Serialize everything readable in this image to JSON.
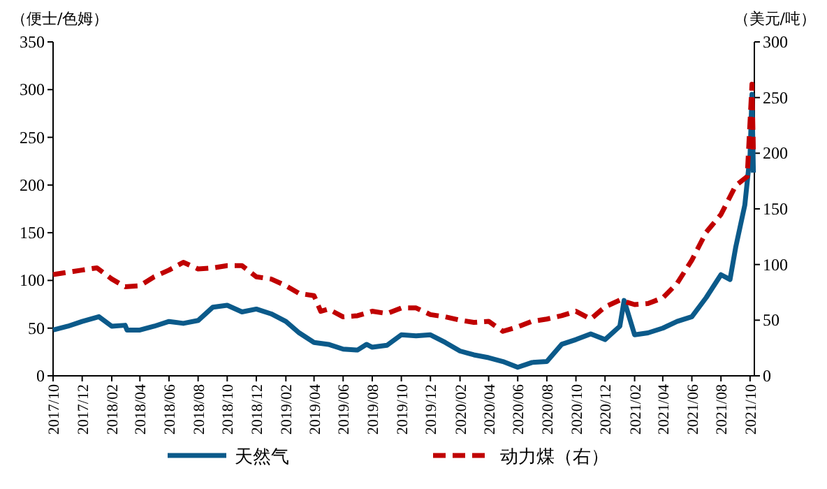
{
  "chart_data": {
    "type": "line",
    "ylabel": "（便士/色姆）",
    "y2label": "（美元/吨）",
    "legend": "bottom",
    "grid": false,
    "xlim": [
      "2017-10-01",
      "2021-10-10"
    ],
    "xticks": [
      {
        "value": "2017-10",
        "label": "2017/10"
      },
      {
        "value": "2017-12",
        "label": "2017/12"
      },
      {
        "value": "2018-02",
        "label": "2018/02"
      },
      {
        "value": "2018-04",
        "label": "2018/04"
      },
      {
        "value": "2018-06",
        "label": "2018/06"
      },
      {
        "value": "2018-08",
        "label": "2018/08"
      },
      {
        "value": "2018-10",
        "label": "2018/10"
      },
      {
        "value": "2018-12",
        "label": "2018/12"
      },
      {
        "value": "2019-02",
        "label": "2019/02"
      },
      {
        "value": "2019-04",
        "label": "2019/04"
      },
      {
        "value": "2019-06",
        "label": "2019/06"
      },
      {
        "value": "2019-08",
        "label": "2019/08"
      },
      {
        "value": "2019-10",
        "label": "2019/10"
      },
      {
        "value": "2019-12",
        "label": "2019/12"
      },
      {
        "value": "2020-02",
        "label": "2020/02"
      },
      {
        "value": "2020-04",
        "label": "2020/04"
      },
      {
        "value": "2020-06",
        "label": "2020/06"
      },
      {
        "value": "2020-08",
        "label": "2020/08"
      },
      {
        "value": "2020-10",
        "label": "2020/10"
      },
      {
        "value": "2020-12",
        "label": "2020/12"
      },
      {
        "value": "2021-02",
        "label": "2021/02"
      },
      {
        "value": "2021-04",
        "label": "2021/04"
      },
      {
        "value": "2021-06",
        "label": "2021/06"
      },
      {
        "value": "2021-08",
        "label": "2021/08"
      },
      {
        "value": "2021-10",
        "label": "2021/10"
      }
    ],
    "ylim": [
      0,
      350
    ],
    "yticks": [
      0,
      50,
      100,
      150,
      200,
      250,
      300,
      350
    ],
    "y2lim": [
      0,
      300
    ],
    "y2ticks": [
      0,
      50,
      100,
      150,
      200,
      250,
      300
    ],
    "series": [
      {
        "name": "天然气",
        "color": "#0b5a8a",
        "line_style": "solid",
        "x": [
          "2017-10-01",
          "2017-11-01",
          "2017-12-01",
          "2018-01-05",
          "2018-02-01",
          "2018-03-01",
          "2018-03-05",
          "2018-04-01",
          "2018-05-01",
          "2018-06-01",
          "2018-07-01",
          "2018-08-01",
          "2018-09-01",
          "2018-10-01",
          "2018-11-01",
          "2018-12-01",
          "2019-01-01",
          "2019-02-01",
          "2019-03-01",
          "2019-04-01",
          "2019-05-01",
          "2019-06-01",
          "2019-07-01",
          "2019-07-20",
          "2019-08-01",
          "2019-09-01",
          "2019-10-01",
          "2019-11-01",
          "2019-12-01",
          "2020-01-01",
          "2020-02-01",
          "2020-03-01",
          "2020-04-01",
          "2020-05-01",
          "2020-06-01",
          "2020-07-01",
          "2020-08-01",
          "2020-09-01",
          "2020-10-01",
          "2020-11-01",
          "2020-12-01",
          "2021-01-01",
          "2021-01-10",
          "2021-02-01",
          "2021-03-01",
          "2021-04-01",
          "2021-05-01",
          "2021-06-01",
          "2021-07-01",
          "2021-08-01",
          "2021-08-20",
          "2021-09-01",
          "2021-09-20",
          "2021-10-01",
          "2021-10-05",
          "2021-10-08"
        ],
        "values": [
          48,
          52,
          57,
          62,
          52,
          53,
          48,
          48,
          52,
          57,
          55,
          58,
          72,
          74,
          67,
          70,
          65,
          57,
          45,
          35,
          33,
          28,
          27,
          33,
          30,
          32,
          43,
          42,
          43,
          35,
          26,
          22,
          19,
          15,
          9,
          14,
          15,
          33,
          38,
          44,
          38,
          52,
          79,
          43,
          45,
          50,
          57,
          62,
          82,
          106,
          101,
          135,
          179,
          232,
          295,
          213
        ]
      },
      {
        "name": "动力煤（右）",
        "color": "#c00000",
        "line_style": "dashed",
        "axis": "y2",
        "x": [
          "2017-10-01",
          "2017-12-01",
          "2018-01-01",
          "2018-02-01",
          "2018-03-01",
          "2018-04-01",
          "2018-05-01",
          "2018-06-01",
          "2018-07-01",
          "2018-08-01",
          "2018-09-01",
          "2018-10-01",
          "2018-11-01",
          "2018-12-01",
          "2019-01-01",
          "2019-02-01",
          "2019-03-01",
          "2019-04-01",
          "2019-04-15",
          "2019-05-01",
          "2019-06-01",
          "2019-07-01",
          "2019-08-01",
          "2019-09-01",
          "2019-10-01",
          "2019-11-01",
          "2019-12-01",
          "2020-01-01",
          "2020-02-01",
          "2020-03-01",
          "2020-04-01",
          "2020-05-01",
          "2020-06-01",
          "2020-07-01",
          "2020-08-01",
          "2020-09-01",
          "2020-10-01",
          "2020-11-01",
          "2020-12-01",
          "2021-01-01",
          "2021-02-01",
          "2021-03-01",
          "2021-04-01",
          "2021-05-01",
          "2021-06-01",
          "2021-07-01",
          "2021-08-01",
          "2021-09-01",
          "2021-09-25",
          "2021-10-05",
          "2021-10-08"
        ],
        "values": [
          91,
          95,
          97,
          87,
          80,
          81,
          89,
          95,
          102,
          96,
          97,
          99,
          99,
          89,
          87,
          81,
          74,
          72,
          58,
          60,
          53,
          54,
          58,
          56,
          61,
          61,
          55,
          53,
          50,
          48,
          49,
          40,
          44,
          49,
          51,
          54,
          58,
          51,
          62,
          68,
          64,
          65,
          70,
          83,
          104,
          129,
          145,
          171,
          179,
          262,
          200
        ]
      }
    ]
  }
}
